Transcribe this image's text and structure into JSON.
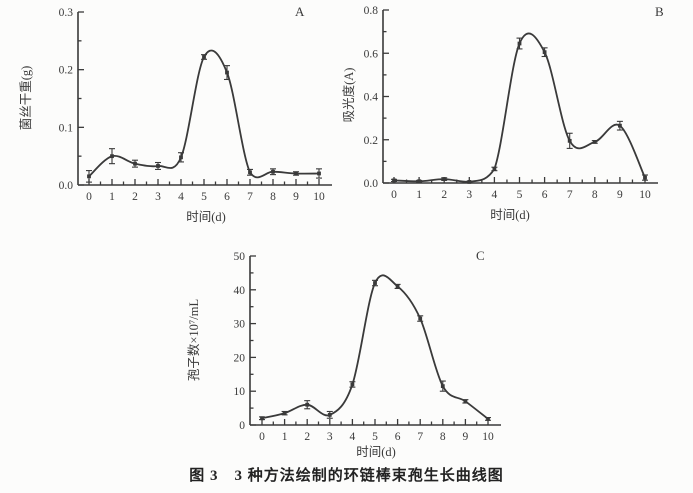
{
  "figure": {
    "caption": "图 3　3 种方法绘制的环链棒束孢生长曲线图"
  },
  "chart_data": [
    {
      "id": "A",
      "type": "line",
      "panel_label": "A",
      "title": "",
      "xlabel": "时间(d)",
      "ylabel": "菌丝干重(g)",
      "x": [
        0,
        1,
        2,
        3,
        4,
        5,
        6,
        7,
        8,
        9,
        10
      ],
      "xtick_labels": [
        "0",
        "1",
        "2",
        "3",
        "4",
        "5",
        "6",
        "7",
        "8",
        "9",
        "10"
      ],
      "values": [
        0.015,
        0.05,
        0.037,
        0.033,
        0.048,
        0.222,
        0.195,
        0.022,
        0.023,
        0.02,
        0.02
      ],
      "errors": [
        0.01,
        0.013,
        0.006,
        0.006,
        0.008,
        0.004,
        0.012,
        0.005,
        0.005,
        0.003,
        0.008
      ],
      "ylim": [
        0,
        0.3
      ],
      "yticks": [
        0,
        0.1,
        0.2,
        0.3
      ],
      "ytick_labels": [
        "0.0",
        "0.1",
        "0.2",
        "0.3"
      ],
      "grid": false,
      "legend": null,
      "line_color": "#3a3a3a"
    },
    {
      "id": "B",
      "type": "line",
      "panel_label": "B",
      "title": "",
      "xlabel": "时间(d)",
      "ylabel": "吸光度(A)",
      "x": [
        0,
        1,
        2,
        3,
        4,
        5,
        6,
        7,
        8,
        9,
        10
      ],
      "xtick_labels": [
        "0",
        "1",
        "2",
        "3",
        "4",
        "5",
        "6",
        "7",
        "8",
        "9",
        "10"
      ],
      "values": [
        0.012,
        0.008,
        0.018,
        0.005,
        0.065,
        0.645,
        0.605,
        0.195,
        0.19,
        0.265,
        0.025
      ],
      "errors": [
        0.005,
        0.004,
        0.006,
        0.003,
        0.008,
        0.025,
        0.02,
        0.035,
        0.006,
        0.02,
        0.012
      ],
      "ylim": [
        0,
        0.8
      ],
      "yticks": [
        0,
        0.2,
        0.4,
        0.6,
        0.8
      ],
      "ytick_labels": [
        "0.0",
        "0.2",
        "0.4",
        "0.6",
        "0.8"
      ],
      "grid": false,
      "legend": null,
      "line_color": "#3a3a3a"
    },
    {
      "id": "C",
      "type": "line",
      "panel_label": "C",
      "title": "",
      "xlabel": "时间(d)",
      "ylabel": "孢子数×10⁷/mL",
      "x": [
        0,
        1,
        2,
        3,
        4,
        5,
        6,
        7,
        8,
        9,
        10
      ],
      "xtick_labels": [
        "0",
        "1",
        "2",
        "3",
        "4",
        "5",
        "6",
        "7",
        "8",
        "9",
        "10"
      ],
      "values": [
        2,
        3.5,
        6,
        3,
        12,
        42,
        41,
        31.5,
        11.5,
        7,
        1.8
      ],
      "errors": [
        0.4,
        0.5,
        1.2,
        1.0,
        0.8,
        0.8,
        0.6,
        0.8,
        1.5,
        0.5,
        0.4
      ],
      "ylim": [
        0,
        50
      ],
      "yticks": [
        0,
        10,
        20,
        30,
        40,
        50
      ],
      "ytick_labels": [
        "0",
        "10",
        "20",
        "30",
        "40",
        "50"
      ],
      "grid": false,
      "legend": null,
      "line_color": "#3a3a3a"
    }
  ]
}
